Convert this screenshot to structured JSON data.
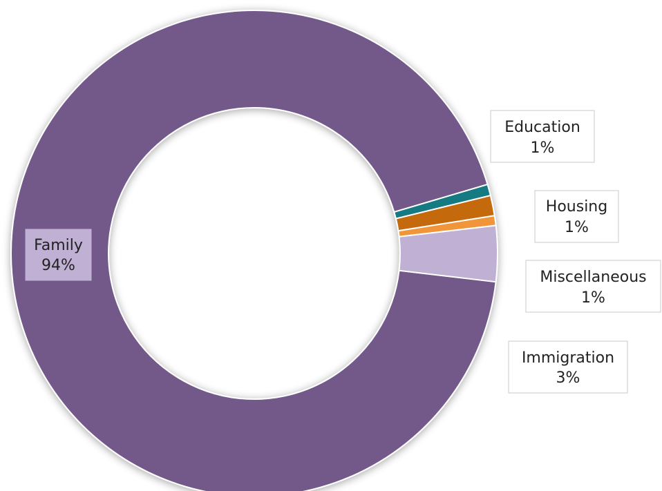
{
  "chart_data": {
    "type": "pie",
    "variant": "donut",
    "start": "slight offset above horizontal on right side",
    "legend": "none",
    "slices": [
      {
        "category": "Family",
        "value": 94,
        "label_pct": "94%",
        "color": "#73588a"
      },
      {
        "category": "Education",
        "value": 1,
        "label_pct": "1%",
        "color": "#157a83"
      },
      {
        "category": "Housing",
        "value": 1,
        "label_pct": "1%",
        "color": "#c46a0e"
      },
      {
        "category": "Miscellaneous",
        "value": 1,
        "label_pct": "1%",
        "color": "#f1953a"
      },
      {
        "category": "Immigration",
        "value": 3,
        "label_pct": "3%",
        "color": "#bfb0d4"
      }
    ]
  }
}
